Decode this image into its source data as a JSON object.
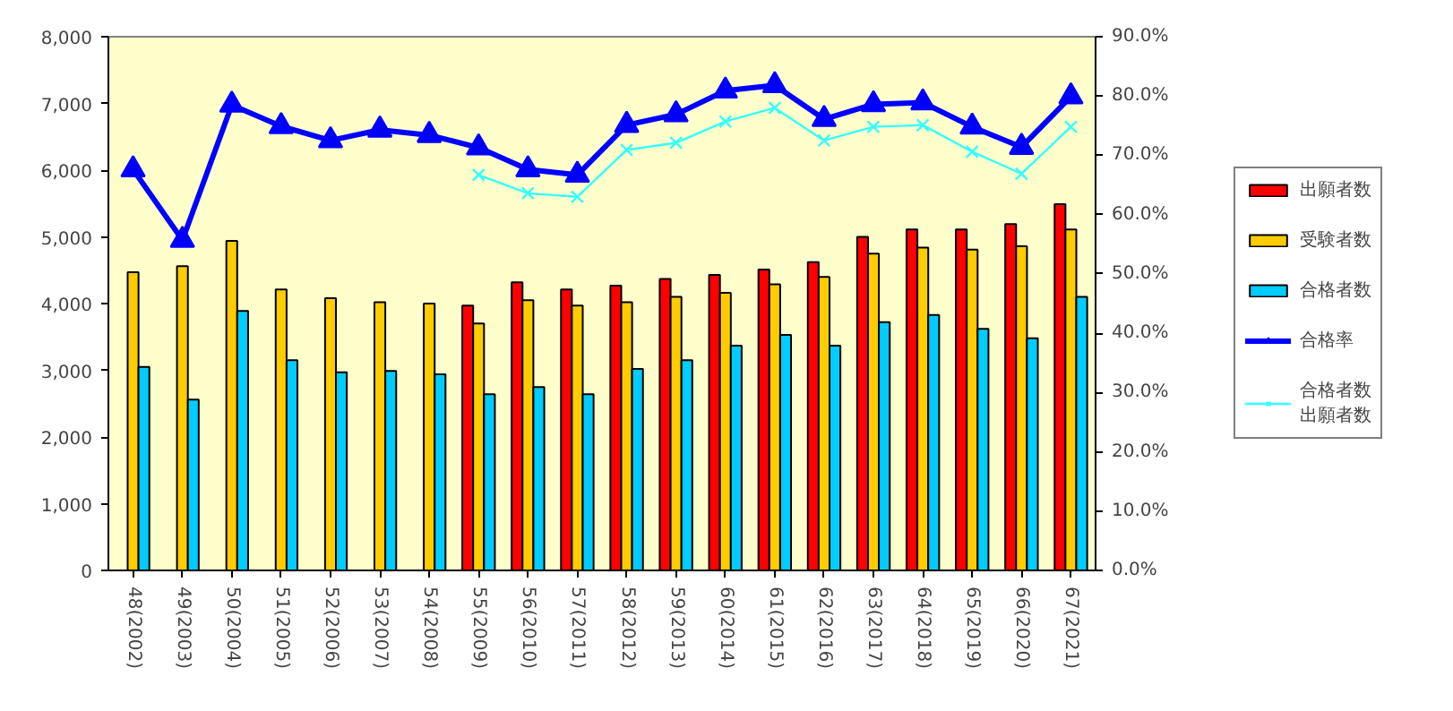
{
  "chart_data": {
    "type": "bar",
    "categories": [
      "48(2002)",
      "49(2003)",
      "50(2004)",
      "51(2005)",
      "52(2006)",
      "53(2007)",
      "54(2008)",
      "55(2009)",
      "56(2010)",
      "57(2011)",
      "58(2012)",
      "59(2013)",
      "60(2014)",
      "61(2015)",
      "62(2016)",
      "63(2017)",
      "64(2018)",
      "65(2019)",
      "66(2020)",
      "67(2021)"
    ],
    "series": [
      {
        "name": "出願者数",
        "color": "#ff0000",
        "values": [
          null,
          null,
          null,
          null,
          null,
          null,
          null,
          3970,
          4320,
          4210,
          4270,
          4370,
          4430,
          4510,
          4620,
          5000,
          5110,
          5110,
          5190,
          5490
        ]
      },
      {
        "name": "受験者数",
        "color": "#ffcc00",
        "values": [
          4470,
          4560,
          4940,
          4210,
          4080,
          4020,
          4000,
          3700,
          4050,
          3970,
          4020,
          4100,
          4160,
          4290,
          4400,
          4750,
          4840,
          4810,
          4860,
          5110
        ]
      },
      {
        "name": "合格者数",
        "color": "#00ccff",
        "values": [
          3050,
          2560,
          3890,
          3150,
          2970,
          2990,
          2940,
          2640,
          2750,
          2640,
          3020,
          3150,
          3370,
          3530,
          3370,
          3720,
          3830,
          3620,
          3480,
          4100
        ]
      },
      {
        "name": "合格率",
        "type": "line",
        "axis": "y2",
        "marker": "triangle",
        "color": "#0000ff",
        "values": [
          67.6,
          55.7,
          78.5,
          74.9,
          72.5,
          74.3,
          73.4,
          71.3,
          67.6,
          66.7,
          75.1,
          76.9,
          80.9,
          81.8,
          76.1,
          78.6,
          78.9,
          74.8,
          71.4,
          79.9
        ]
      },
      {
        "name": "合格者数出願者数",
        "type": "line",
        "axis": "y2",
        "marker": "cross",
        "color": "#33ffff",
        "values": [
          null,
          null,
          null,
          null,
          null,
          null,
          null,
          66.7,
          63.6,
          63.0,
          70.9,
          72.1,
          75.7,
          78.0,
          72.5,
          74.8,
          75.1,
          70.6,
          66.9,
          74.8
        ]
      }
    ],
    "ylim": [
      0,
      8000
    ],
    "yticks": [
      0,
      {
        "value": 1000,
        "label": "1,000"
      },
      {
        "value": 2000,
        "label": "2,000"
      },
      {
        "value": 3000,
        "label": "3,000"
      },
      {
        "value": 4000,
        "label": "4,000"
      },
      {
        "value": 5000,
        "label": "5,000"
      },
      {
        "value": 6000,
        "label": "6,000"
      },
      {
        "value": 7000,
        "label": "7,000"
      },
      {
        "value": 8000,
        "label": "8,000"
      }
    ],
    "y2lim": [
      0,
      90
    ],
    "y2ticks": [
      {
        "value": 0,
        "label": "0.0%"
      },
      {
        "value": 10,
        "label": "10.0%"
      },
      {
        "value": 20,
        "label": "20.0%"
      },
      {
        "value": 30,
        "label": "30.0%"
      },
      {
        "value": 40,
        "label": "40.0%"
      },
      {
        "value": 50,
        "label": "50.0%"
      },
      {
        "value": 60,
        "label": "60.0%"
      },
      {
        "value": 70,
        "label": "70.0%"
      },
      {
        "value": 80,
        "label": "80.0%"
      },
      {
        "value": 90,
        "label": "90.0%"
      }
    ],
    "grid": false,
    "legend": "right"
  }
}
